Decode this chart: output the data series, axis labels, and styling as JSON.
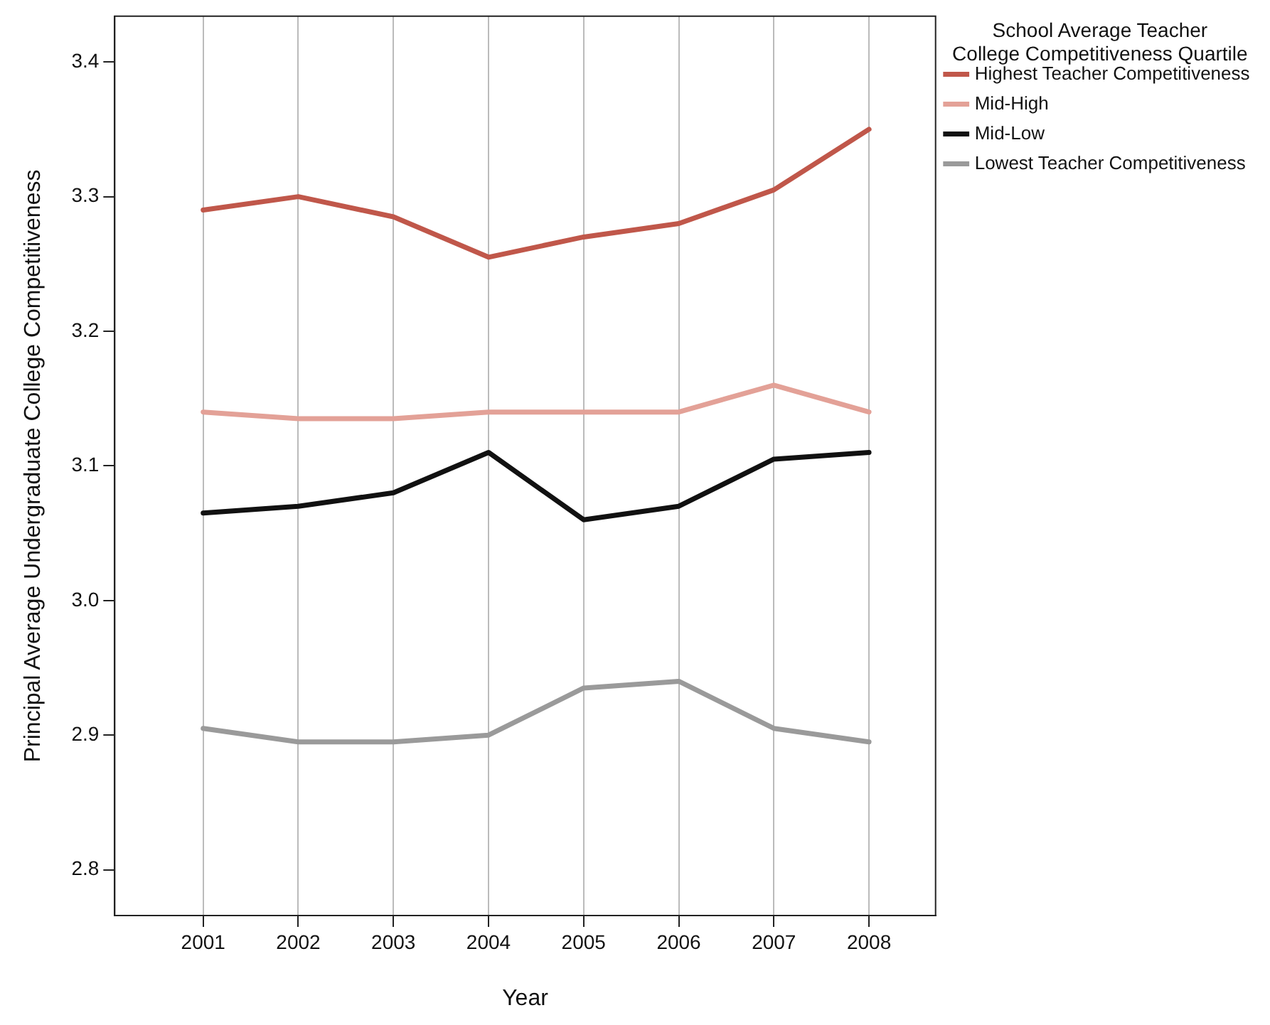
{
  "chart_data": {
    "type": "line",
    "xlabel": "Year",
    "ylabel": "Principal Average Undergraduate College Competitiveness",
    "legend_title": "School Average Teacher\nCollege Competitiveness Quartile",
    "x": [
      2001,
      2002,
      2003,
      2004,
      2005,
      2006,
      2007,
      2008
    ],
    "xlim": [
      2000.07,
      2008.7
    ],
    "xticks": [
      2001,
      2002,
      2003,
      2004,
      2005,
      2006,
      2007,
      2008
    ],
    "ylim": [
      2.766,
      3.434
    ],
    "yticks": [
      {
        "value": 2.8,
        "label": "2.8"
      },
      {
        "value": 2.9,
        "label": "2.9"
      },
      {
        "value": 3.0,
        "label": "3.0"
      },
      {
        "value": 3.1,
        "label": "3.1"
      },
      {
        "value": 3.2,
        "label": "3.2"
      },
      {
        "value": 3.3,
        "label": "3.3"
      },
      {
        "value": 3.4,
        "label": "3.4"
      }
    ],
    "grid": "x",
    "legend": "right",
    "marker": "none",
    "line_style": "solid",
    "series": [
      {
        "name": "Highest Teacher Competitiveness",
        "color": "#c0574a",
        "values": [
          3.29,
          3.3,
          3.285,
          3.255,
          3.27,
          3.28,
          3.305,
          3.35
        ]
      },
      {
        "name": "Mid-High",
        "color": "#e3a197",
        "values": [
          3.14,
          3.135,
          3.135,
          3.14,
          3.14,
          3.14,
          3.16,
          3.14
        ]
      },
      {
        "name": "Mid-Low",
        "color": "#111111",
        "values": [
          3.065,
          3.07,
          3.08,
          3.11,
          3.06,
          3.07,
          3.105,
          3.11
        ]
      },
      {
        "name": "Lowest Teacher Competitiveness",
        "color": "#9a9a9a",
        "values": [
          2.905,
          2.895,
          2.895,
          2.9,
          2.935,
          2.94,
          2.905,
          2.895
        ]
      }
    ]
  }
}
